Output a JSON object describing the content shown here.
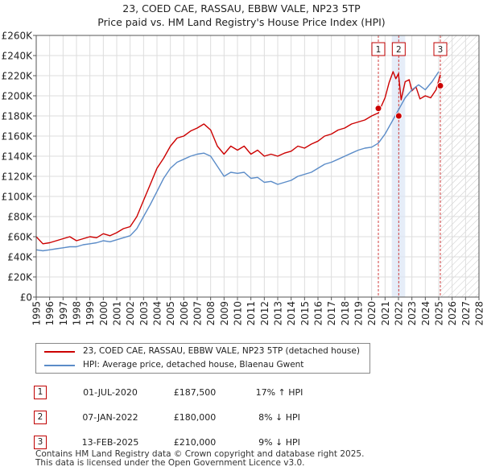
{
  "title_line1": "23, COED CAE, RASSAU, EBBW VALE, NP23 5TP",
  "title_line2": "Price paid vs. HM Land Registry's House Price Index (HPI)",
  "chart_data": {
    "type": "line",
    "title": "23, COED CAE, RASSAU, EBBW VALE, NP23 5TP - Price paid vs. HM Land Registry's House Price Index (HPI)",
    "xlim": [
      1995,
      2028
    ],
    "ylim": [
      0,
      260000
    ],
    "x_ticks": [
      "1995",
      "1996",
      "1997",
      "1998",
      "1999",
      "2000",
      "2001",
      "2002",
      "2003",
      "2004",
      "2005",
      "2006",
      "2007",
      "2008",
      "2009",
      "2010",
      "2011",
      "2012",
      "2013",
      "2014",
      "2015",
      "2016",
      "2017",
      "2018",
      "2019",
      "2020",
      "2021",
      "2022",
      "2023",
      "2024",
      "2025",
      "2026",
      "2027",
      "2028"
    ],
    "y_ticks": [
      {
        "value": 0,
        "label": "£0"
      },
      {
        "value": 20000,
        "label": "£20K"
      },
      {
        "value": 40000,
        "label": "£40K"
      },
      {
        "value": 60000,
        "label": "£60K"
      },
      {
        "value": 80000,
        "label": "£80K"
      },
      {
        "value": 100000,
        "label": "£100K"
      },
      {
        "value": 120000,
        "label": "£120K"
      },
      {
        "value": 140000,
        "label": "£140K"
      },
      {
        "value": 160000,
        "label": "£160K"
      },
      {
        "value": 180000,
        "label": "£180K"
      },
      {
        "value": 200000,
        "label": "£200K"
      },
      {
        "value": 220000,
        "label": "£220K"
      },
      {
        "value": 240000,
        "label": "£240K"
      },
      {
        "value": 260000,
        "label": "£260K"
      }
    ],
    "grid": true,
    "future_hatch_from": 2025.12,
    "highlight_span": [
      2021.5,
      2022.5
    ],
    "series": [
      {
        "name": "23, COED CAE, RASSAU, EBBW VALE, NP23 5TP (detached house)",
        "color": "#cc0000",
        "x": [
          1995,
          1995.5,
          1996,
          1996.5,
          1997,
          1997.5,
          1998,
          1998.5,
          1999,
          1999.5,
          2000,
          2000.5,
          2001,
          2001.5,
          2002,
          2002.5,
          2003,
          2003.5,
          2004,
          2004.5,
          2005,
          2005.5,
          2006,
          2006.5,
          2007,
          2007.5,
          2008,
          2008.5,
          2009,
          2009.5,
          2010,
          2010.5,
          2011,
          2011.5,
          2012,
          2012.5,
          2013,
          2013.5,
          2014,
          2014.5,
          2015,
          2015.5,
          2016,
          2016.5,
          2017,
          2017.5,
          2018,
          2018.5,
          2019,
          2019.5,
          2020,
          2020.5,
          2021,
          2021.3,
          2021.6,
          2021.8,
          2022.0,
          2022.2,
          2022.5,
          2022.8,
          2023,
          2023.3,
          2023.6,
          2024,
          2024.4,
          2024.8,
          2025.12
        ],
        "y": [
          60000,
          53000,
          54000,
          56000,
          58000,
          60000,
          56000,
          58000,
          60000,
          59000,
          63000,
          61000,
          64000,
          68000,
          70000,
          80000,
          96000,
          112000,
          128000,
          138000,
          150000,
          158000,
          160000,
          165000,
          168000,
          172000,
          166000,
          150000,
          142000,
          150000,
          146000,
          150000,
          142000,
          146000,
          140000,
          142000,
          140000,
          143000,
          145000,
          150000,
          148000,
          152000,
          155000,
          160000,
          162000,
          166000,
          168000,
          172000,
          174000,
          176000,
          180000,
          183000,
          198000,
          213000,
          224000,
          217000,
          222000,
          196000,
          214000,
          216000,
          205000,
          209000,
          197000,
          200000,
          198000,
          206000,
          221000
        ]
      },
      {
        "name": "HPI: Average price, detached house, Blaenau Gwent",
        "color": "#5b8cc8",
        "x": [
          1995,
          1995.5,
          1996,
          1996.5,
          1997,
          1997.5,
          1998,
          1998.5,
          1999,
          1999.5,
          2000,
          2000.5,
          2001,
          2001.5,
          2002,
          2002.5,
          2003,
          2003.5,
          2004,
          2004.5,
          2005,
          2005.5,
          2006,
          2006.5,
          2007,
          2007.5,
          2008,
          2008.5,
          2009,
          2009.5,
          2010,
          2010.5,
          2011,
          2011.5,
          2012,
          2012.5,
          2013,
          2013.5,
          2014,
          2014.5,
          2015,
          2015.5,
          2016,
          2016.5,
          2017,
          2017.5,
          2018,
          2018.5,
          2019,
          2019.5,
          2020,
          2020.5,
          2021,
          2021.5,
          2022,
          2022.5,
          2023,
          2023.5,
          2024,
          2024.5,
          2025
        ],
        "y": [
          47000,
          46000,
          47000,
          48000,
          49000,
          50000,
          50000,
          52000,
          53000,
          54000,
          56000,
          55000,
          57000,
          59000,
          61000,
          68000,
          80000,
          92000,
          105000,
          118000,
          128000,
          134000,
          137000,
          140000,
          142000,
          143000,
          140000,
          130000,
          120000,
          124000,
          123000,
          124000,
          118000,
          119000,
          114000,
          115000,
          112000,
          114000,
          116000,
          120000,
          122000,
          124000,
          128000,
          132000,
          134000,
          137000,
          140000,
          143000,
          146000,
          148000,
          149000,
          153000,
          162000,
          174000,
          186000,
          198000,
          206000,
          211000,
          206000,
          214000,
          224000
        ]
      }
    ],
    "transactions": [
      {
        "id": "1",
        "date": "01-JUL-2020",
        "x": 2020.5,
        "price_label": "£187,500",
        "value": 187500,
        "hpi": "17% ↑ HPI"
      },
      {
        "id": "2",
        "date": "07-JAN-2022",
        "x": 2022.02,
        "price_label": "£180,000",
        "value": 180000,
        "hpi": "8% ↓ HPI"
      },
      {
        "id": "3",
        "date": "13-FEB-2025",
        "x": 2025.12,
        "price_label": "£210,000",
        "value": 210000,
        "hpi": "9% ↓ HPI"
      }
    ]
  },
  "legend": {
    "property_label": "23, COED CAE, RASSAU, EBBW VALE, NP23 5TP (detached house)",
    "hpi_label": "HPI: Average price, detached house, Blaenau Gwent"
  },
  "footer": {
    "line1": "Contains HM Land Registry data © Crown copyright and database right 2025.",
    "line2": "This data is licensed under the Open Government Licence v3.0."
  }
}
